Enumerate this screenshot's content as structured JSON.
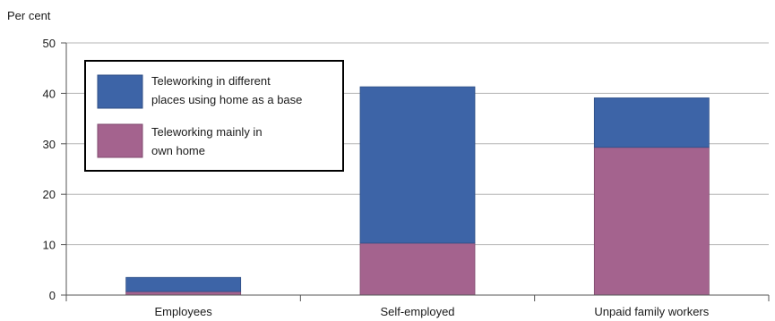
{
  "chart_data": {
    "type": "bar",
    "stacked": true,
    "title": "",
    "xlabel": "",
    "ylabel": "Per cent",
    "ylim": [
      0,
      50
    ],
    "yticks": [
      0,
      10,
      20,
      30,
      40,
      50
    ],
    "grid": true,
    "legend_position": "top-left",
    "categories": [
      "Employees",
      "Self-employed",
      "Unpaid family workers"
    ],
    "series": [
      {
        "name": "Teleworking mainly in own home",
        "legend_lines": [
          "Teleworking mainly in",
          "own home"
        ],
        "color": "#a4638e",
        "values": [
          0.7,
          10.3,
          29.3
        ]
      },
      {
        "name": "Teleworking in different places using home as a base",
        "legend_lines": [
          "Teleworking in different",
          "places using home as a base"
        ],
        "color": "#3d64a7",
        "values": [
          2.8,
          31.0,
          9.8
        ]
      }
    ]
  }
}
